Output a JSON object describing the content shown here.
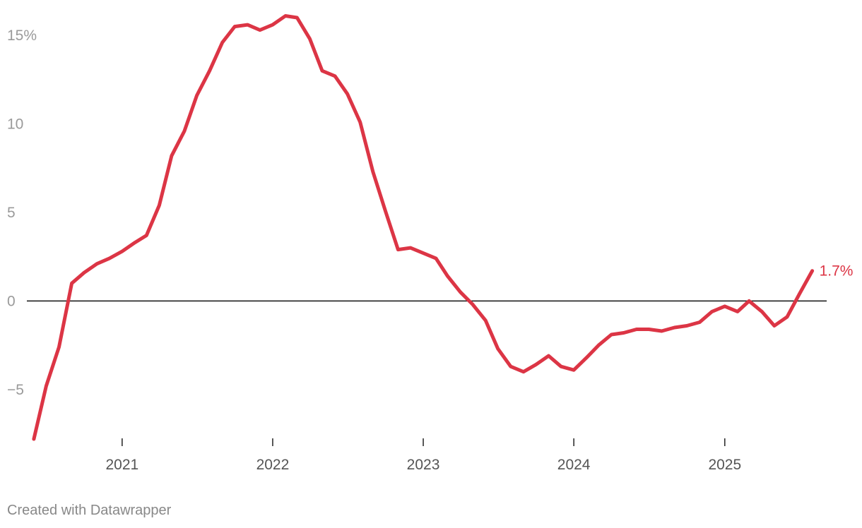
{
  "chart_data": {
    "type": "line",
    "title": "",
    "xlabel": "",
    "ylabel": "",
    "ylim": [
      -7.8,
      16.2
    ],
    "xlim": [
      "2020-05-15",
      "2025-09-05"
    ],
    "y_ticks": [
      15,
      10,
      5,
      0,
      -5
    ],
    "y_tick_labels": [
      "15%",
      "10",
      "5",
      "0",
      "−5"
    ],
    "x_ticks": [
      "2021-01-01",
      "2022-01-01",
      "2023-01-01",
      "2024-01-01",
      "2025-01-01"
    ],
    "x_tick_labels": [
      "2021",
      "2022",
      "2023",
      "2024",
      "2025"
    ],
    "grid": false,
    "zero_line": true,
    "series": [
      {
        "color": "#dc3545",
        "end_label": "1.7%",
        "points": [
          [
            "2020-06-01",
            -7.8
          ],
          [
            "2020-07-01",
            -4.8
          ],
          [
            "2020-08-01",
            -2.6
          ],
          [
            "2020-09-01",
            1.0
          ],
          [
            "2020-10-01",
            1.6
          ],
          [
            "2020-11-01",
            2.1
          ],
          [
            "2020-12-01",
            2.4
          ],
          [
            "2021-01-01",
            2.8
          ],
          [
            "2021-02-01",
            3.3
          ],
          [
            "2021-03-01",
            3.7
          ],
          [
            "2021-04-01",
            5.4
          ],
          [
            "2021-05-01",
            8.2
          ],
          [
            "2021-06-01",
            9.6
          ],
          [
            "2021-07-01",
            11.6
          ],
          [
            "2021-08-01",
            13.0
          ],
          [
            "2021-09-01",
            14.6
          ],
          [
            "2021-10-01",
            15.5
          ],
          [
            "2021-11-01",
            15.6
          ],
          [
            "2021-12-01",
            15.3
          ],
          [
            "2022-01-01",
            15.6
          ],
          [
            "2022-02-01",
            16.1
          ],
          [
            "2022-03-01",
            16.0
          ],
          [
            "2022-04-01",
            14.8
          ],
          [
            "2022-05-01",
            13.0
          ],
          [
            "2022-06-01",
            12.7
          ],
          [
            "2022-07-01",
            11.7
          ],
          [
            "2022-08-01",
            10.1
          ],
          [
            "2022-09-01",
            7.3
          ],
          [
            "2022-10-01",
            5.1
          ],
          [
            "2022-11-01",
            2.9
          ],
          [
            "2022-12-01",
            3.0
          ],
          [
            "2023-01-01",
            2.7
          ],
          [
            "2023-02-01",
            2.4
          ],
          [
            "2023-03-01",
            1.4
          ],
          [
            "2023-04-01",
            0.5
          ],
          [
            "2023-05-01",
            -0.2
          ],
          [
            "2023-06-01",
            -1.1
          ],
          [
            "2023-07-01",
            -2.7
          ],
          [
            "2023-08-01",
            -3.7
          ],
          [
            "2023-09-01",
            -4.0
          ],
          [
            "2023-10-01",
            -3.6
          ],
          [
            "2023-11-01",
            -3.1
          ],
          [
            "2023-12-01",
            -3.7
          ],
          [
            "2024-01-01",
            -3.9
          ],
          [
            "2024-02-01",
            -3.2
          ],
          [
            "2024-03-01",
            -2.5
          ],
          [
            "2024-04-01",
            -1.9
          ],
          [
            "2024-05-01",
            -1.8
          ],
          [
            "2024-06-01",
            -1.6
          ],
          [
            "2024-07-01",
            -1.6
          ],
          [
            "2024-08-01",
            -1.7
          ],
          [
            "2024-09-01",
            -1.5
          ],
          [
            "2024-10-01",
            -1.4
          ],
          [
            "2024-11-01",
            -1.2
          ],
          [
            "2024-12-01",
            -0.6
          ],
          [
            "2025-01-01",
            -0.3
          ],
          [
            "2025-02-01",
            -0.6
          ],
          [
            "2025-03-01",
            0.0
          ],
          [
            "2025-04-01",
            -0.6
          ],
          [
            "2025-05-01",
            -1.4
          ],
          [
            "2025-06-01",
            -0.9
          ],
          [
            "2025-07-01",
            0.4
          ],
          [
            "2025-08-01",
            1.7
          ]
        ]
      }
    ]
  },
  "footer": {
    "credit": "Created with Datawrapper"
  }
}
